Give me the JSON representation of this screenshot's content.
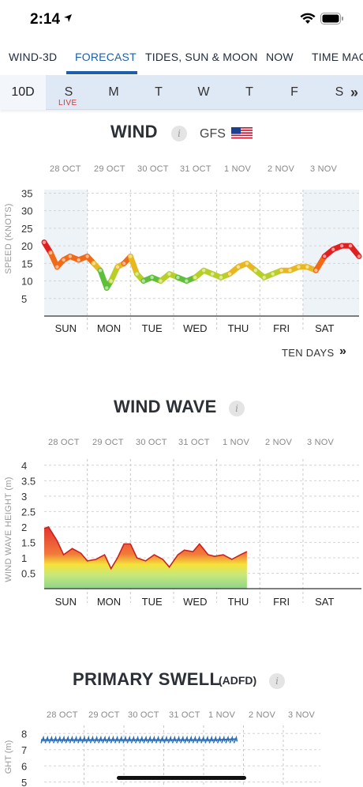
{
  "status": {
    "time": "2:14"
  },
  "nav": {
    "tabs": [
      {
        "label": "WIND-3D"
      },
      {
        "label": "FORECAST"
      },
      {
        "label": "TIDES, SUN & MOON"
      },
      {
        "label": "NOW"
      },
      {
        "label": "TIME MAC"
      }
    ],
    "active_index": 1
  },
  "daybar": {
    "range_label": "10D",
    "days": [
      "S",
      "M",
      "T",
      "W",
      "T",
      "F",
      "S"
    ],
    "live_label": "LIVE",
    "more_glyph": "»"
  },
  "wind": {
    "title": "WIND",
    "info_glyph": "i",
    "model": "GFS",
    "more_label": "TEN DAYS",
    "more_glyph": "»"
  },
  "wave": {
    "title": "WIND WAVE",
    "info_glyph": "i"
  },
  "swell": {
    "title": "PRIMARY SWELL",
    "model": "(ADFD)",
    "info_glyph": "i"
  },
  "colors": {
    "accent": "#1e5fa8",
    "live": "#e03030"
  },
  "chart_data": [
    {
      "type": "line",
      "name": "wind",
      "ylabel": "SPEED (KNOTS)",
      "yticks": [
        5,
        10,
        15,
        20,
        25,
        30,
        35
      ],
      "ylim": [
        0,
        36
      ],
      "xlim": [
        0,
        7.3
      ],
      "date_labels": [
        "28 OCT",
        "29 OCT",
        "30 OCT",
        "31 OCT",
        "1 NOV",
        "2 NOV",
        "3 NOV"
      ],
      "day_labels": [
        "SUN",
        "MON",
        "TUE",
        "WED",
        "THU",
        "FRI",
        "SAT"
      ],
      "x": [
        0.0,
        0.15,
        0.3,
        0.45,
        0.6,
        0.8,
        1.0,
        1.15,
        1.3,
        1.45,
        1.55,
        1.7,
        1.85,
        2.0,
        2.15,
        2.3,
        2.5,
        2.7,
        2.9,
        3.1,
        3.3,
        3.5,
        3.7,
        3.9,
        4.1,
        4.3,
        4.5,
        4.7,
        4.9,
        5.1,
        5.3,
        5.5,
        5.7,
        5.9,
        6.1,
        6.3,
        6.5,
        6.7,
        6.9,
        7.1,
        7.3
      ],
      "values": [
        21,
        18,
        14,
        16,
        17,
        16,
        17,
        15,
        13,
        8,
        10,
        14,
        15,
        17,
        12,
        10,
        11,
        10,
        12,
        11,
        10,
        11,
        13,
        12,
        11,
        12,
        14,
        15,
        13,
        11,
        12,
        13,
        13,
        14,
        14,
        13,
        17,
        19,
        20,
        20,
        17
      ]
    },
    {
      "type": "area",
      "name": "wind wave",
      "ylabel": "WIND WAVE HEIGHT (m)",
      "yticks": [
        0.5,
        1,
        1.5,
        2,
        2.5,
        3,
        3.5,
        4
      ],
      "ylim": [
        0,
        4.2
      ],
      "xlim": [
        0,
        7.3
      ],
      "date_labels": [
        "28 OCT",
        "29 OCT",
        "30 OCT",
        "31 OCT",
        "1 NOV",
        "2 NOV",
        "3 NOV"
      ],
      "day_labels": [
        "SUN",
        "MON",
        "TUE",
        "WED",
        "THU",
        "FRI",
        "SAT"
      ],
      "x": [
        0.0,
        0.1,
        0.3,
        0.45,
        0.65,
        0.85,
        1.0,
        1.2,
        1.4,
        1.55,
        1.7,
        1.85,
        2.0,
        2.15,
        2.35,
        2.55,
        2.75,
        2.9,
        3.1,
        3.25,
        3.45,
        3.6,
        3.8,
        3.95,
        4.15,
        4.35,
        4.55,
        4.7
      ],
      "values": [
        1.95,
        2.0,
        1.55,
        1.1,
        1.3,
        1.15,
        0.9,
        0.95,
        1.1,
        0.65,
        1.0,
        1.45,
        1.45,
        1.0,
        0.9,
        1.1,
        0.95,
        0.7,
        1.1,
        1.25,
        1.2,
        1.45,
        1.1,
        1.05,
        1.1,
        0.95,
        1.1,
        1.2
      ]
    },
    {
      "type": "line",
      "name": "primary swell",
      "ylabel": "GHT (m)",
      "yticks": [
        5,
        6,
        7,
        8
      ],
      "ylim": [
        4.5,
        8.5
      ],
      "xlim": [
        0,
        7.3
      ],
      "date_labels": [
        "28 OCT",
        "29 OCT",
        "30 OCT",
        "31 OCT",
        "1 NOV",
        "2 NOV",
        "3 NOV"
      ],
      "x": [
        0.0,
        1.0,
        2.0,
        3.0,
        4.0,
        4.45
      ],
      "values": [
        7.6,
        7.6,
        7.6,
        7.6,
        7.6,
        7.65
      ]
    }
  ]
}
